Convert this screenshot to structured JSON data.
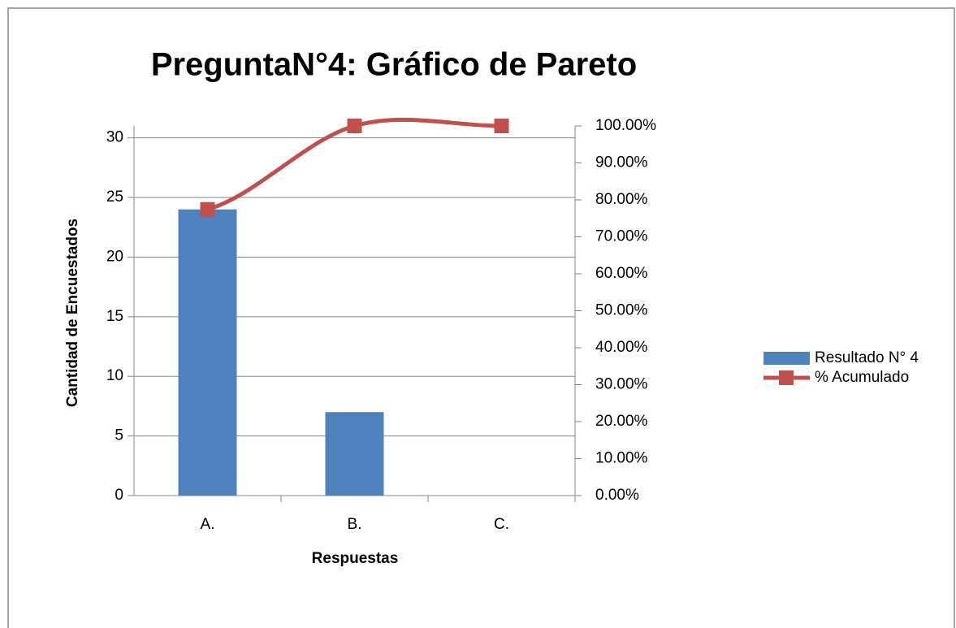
{
  "chart_data": {
    "type": "bar",
    "title": "PreguntaN°4: Gráfico de Pareto",
    "x_label": "Respuestas",
    "y_label": "Cantidad de Encuestados",
    "categories": [
      "A.",
      "B.",
      "C."
    ],
    "series": [
      {
        "name": "Resultado N° 4",
        "color": "#4f81bd",
        "type": "bar",
        "values": [
          24,
          7,
          0
        ]
      },
      {
        "name": "% Acumulado",
        "color": "#c0504d",
        "type": "line",
        "axis": "y2",
        "values": [
          77.42,
          100,
          100
        ]
      }
    ],
    "ylim": [
      0,
      31
    ],
    "yticks": [
      0,
      5,
      10,
      15,
      20,
      25,
      30
    ],
    "y2lim": [
      0,
      100
    ],
    "y2ticks": [
      {
        "value": 0,
        "label": "0.00%"
      },
      {
        "value": 10,
        "label": "10.00%"
      },
      {
        "value": 20,
        "label": "20.00%"
      },
      {
        "value": 30,
        "label": "30.00%"
      },
      {
        "value": 40,
        "label": "40.00%"
      },
      {
        "value": 50,
        "label": "50.00%"
      },
      {
        "value": 60,
        "label": "60.00%"
      },
      {
        "value": 70,
        "label": "70.00%"
      },
      {
        "value": 80,
        "label": "80.00%"
      },
      {
        "value": 90,
        "label": "90.00%"
      },
      {
        "value": 100,
        "label": "100.00%"
      }
    ],
    "grid": true,
    "legend": "right"
  }
}
